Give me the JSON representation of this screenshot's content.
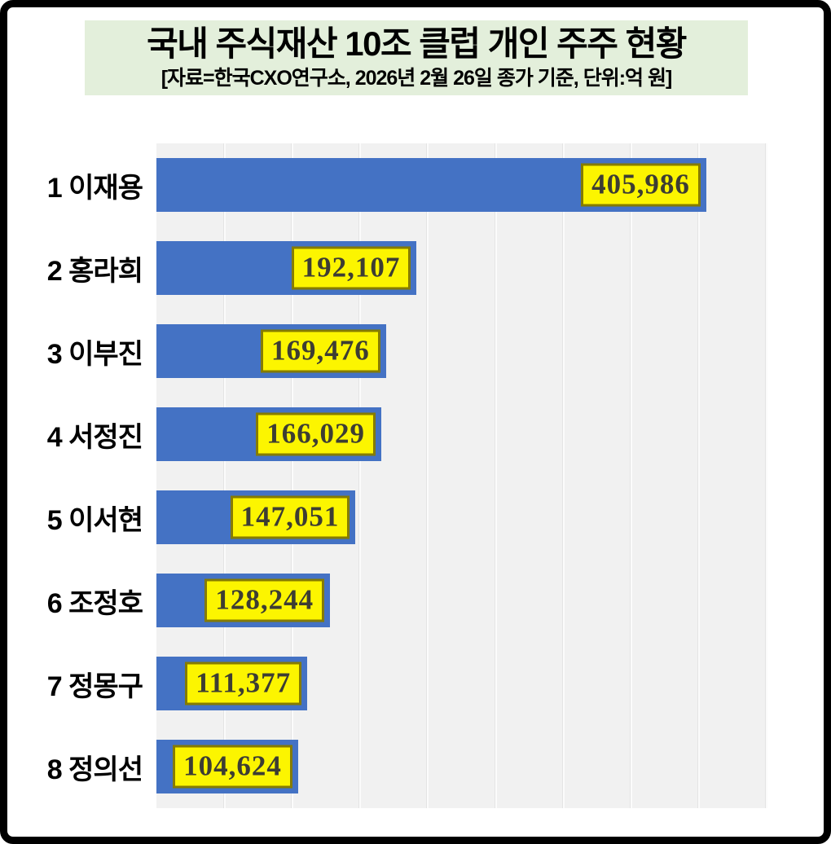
{
  "header": {
    "title": "국내 주식재산 10조 클럽 개인 주주 현황",
    "subtitle": "[자료=한국CXO연구소, 2026년 2월 26일 종가 기준, 단위:억 원]"
  },
  "chart_data": {
    "type": "bar",
    "orientation": "horizontal",
    "title": "국내 주식재산 10조 클럽 개인 주주 현황",
    "source": "한국CXO연구소",
    "as_of": "2026년 2월 26일 종가 기준",
    "unit": "억 원",
    "categories": [
      "1 이재용",
      "2 홍라희",
      "3 이부진",
      "4 서정진",
      "5 이서현",
      "6 조정호",
      "7 정몽구",
      "8 정의선"
    ],
    "values": [
      405986,
      192107,
      169476,
      166029,
      147051,
      128244,
      111377,
      104624
    ],
    "value_labels": [
      "405,986",
      "192,107",
      "169,476",
      "166,029",
      "147,051",
      "128,244",
      "111,377",
      "104,624"
    ],
    "xlim": [
      0,
      450000
    ],
    "grid_step": 50000,
    "grid": true,
    "legend": false,
    "colors": {
      "bar": "#4472c4",
      "plot_bg": "#f1f1f1",
      "gridline": "#fbfbfb",
      "label_bg": "#fcf500",
      "label_border": "#857b00",
      "label_text": "#3d3d33",
      "header_bg": "#e3efdb",
      "frame_border": "#000000"
    }
  }
}
